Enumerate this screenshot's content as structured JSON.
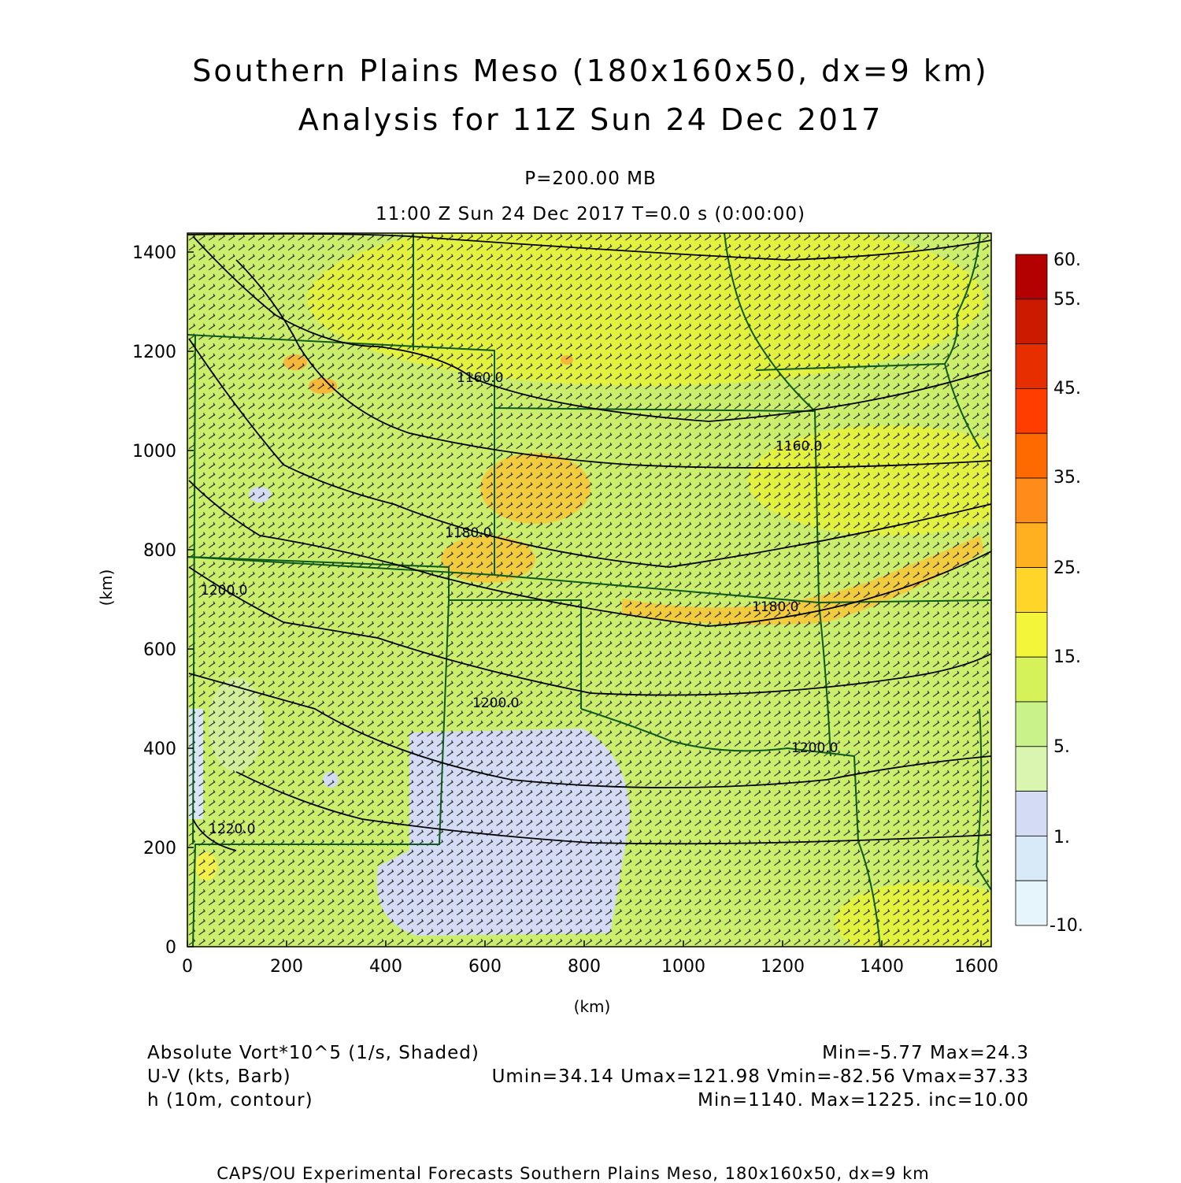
{
  "title": {
    "line1": "Southern Plains Meso (180x160x50, dx=9 km)",
    "line2": "Analysis for 11Z Sun 24 Dec 2017"
  },
  "subtitle": {
    "level": "P=200.00 MB",
    "time": "11:00 Z Sun 24 Dec 2017    T=0.0 s (0:00:00)"
  },
  "axes": {
    "x_ticks": [
      "0",
      "200",
      "400",
      "600",
      "800",
      "1000",
      "1200",
      "1400",
      "1600"
    ],
    "y_ticks": [
      "0",
      "200",
      "400",
      "600",
      "800",
      "1000",
      "1200",
      "1400"
    ],
    "x_label": "(km)",
    "y_label": "(km)"
  },
  "colorbar": {
    "labels": [
      "60.",
      "55.",
      "45.",
      "35.",
      "25.",
      "15.",
      "5.",
      "1.",
      "-10."
    ],
    "colors": [
      "#b30000",
      "#cc1a00",
      "#e62e00",
      "#ff3d00",
      "#ff6a00",
      "#ff8c1a",
      "#ffb020",
      "#ffd52a",
      "#f2f53a",
      "#d6f25a",
      "#c9f28a",
      "#d9f5b0",
      "#d4dcf5",
      "#d8eaf7",
      "#e6f4fb"
    ]
  },
  "contour_labels": [
    "1160.0",
    "1160.0",
    "1180.0",
    "1180.0",
    "1200.0",
    "1200.0",
    "1200.0",
    "1220.0"
  ],
  "info": {
    "left": [
      "Absolute Vort*10^5 (1/s, Shaded)",
      "U-V (kts, Barb)",
      "h (10m, contour)"
    ],
    "right": [
      "Min=-5.77 Max=24.3",
      "Umin=34.14 Umax=121.98 Vmin=-82.56 Vmax=37.33",
      "Min=1140. Max=1225. inc=10.00"
    ]
  },
  "footer": "CAPS/OU Experimental Forecasts  Southern Plains Meso, 180x160x50, dx=9 km"
}
